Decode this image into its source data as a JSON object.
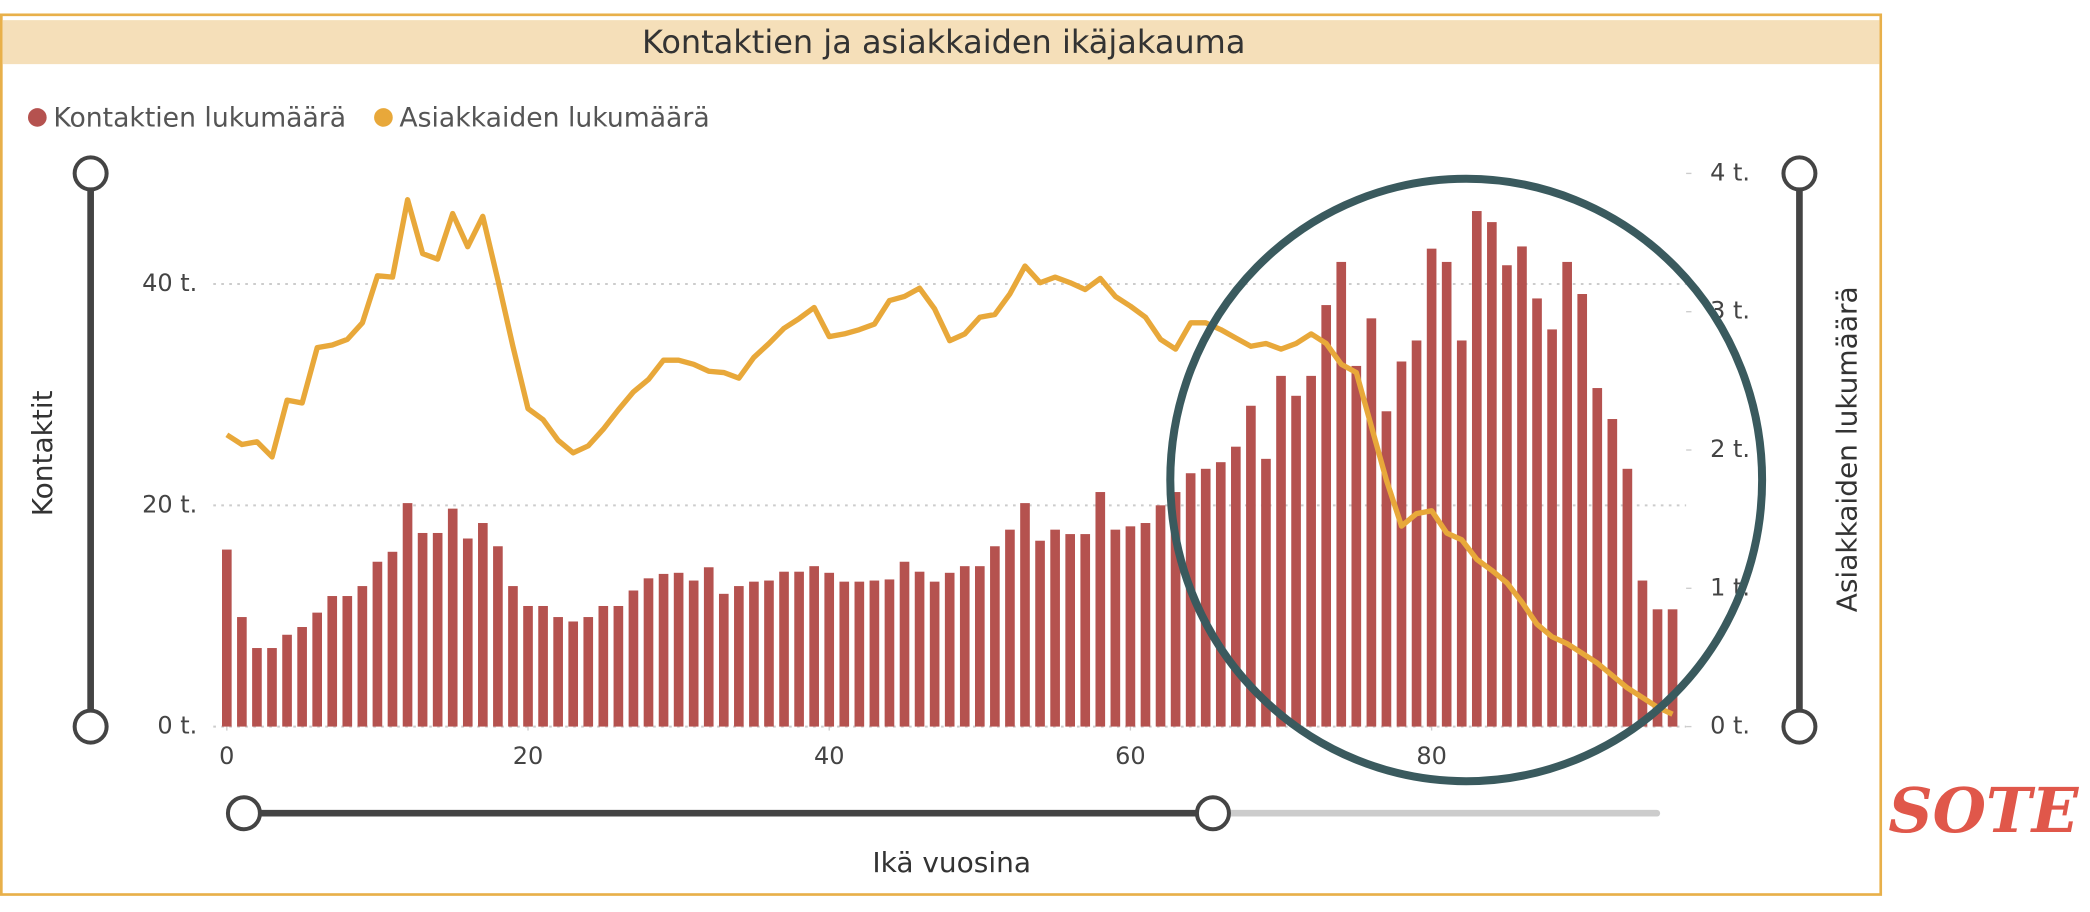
{
  "chart_data": {
    "type": "bar",
    "title": "Kontaktien ja asiakkaiden ikäjakauma",
    "x_label": "Ikä vuosina",
    "y_label": "Kontaktit",
    "y2_label": "Asiakkaiden lukumäärä",
    "x": [
      0,
      1,
      2,
      3,
      4,
      5,
      6,
      7,
      8,
      9,
      10,
      11,
      12,
      13,
      14,
      15,
      16,
      17,
      18,
      19,
      20,
      21,
      22,
      23,
      24,
      25,
      26,
      27,
      28,
      29,
      30,
      31,
      32,
      33,
      34,
      35,
      36,
      37,
      38,
      39,
      40,
      41,
      42,
      43,
      44,
      45,
      46,
      47,
      48,
      49,
      50,
      51,
      52,
      53,
      54,
      55,
      56,
      57,
      58,
      59,
      60,
      61,
      62,
      63,
      64,
      65,
      66,
      67,
      68,
      69,
      70,
      71,
      72,
      73,
      74,
      75,
      76,
      77,
      78,
      79,
      80,
      81,
      82,
      83,
      84,
      85,
      86,
      87,
      88,
      89,
      90,
      91,
      92,
      93,
      94,
      95,
      96
    ],
    "series": [
      {
        "name": "Kontaktien lukumäärä",
        "type": "bar",
        "color": "#b5524f",
        "values": [
          16000,
          9900,
          7100,
          7100,
          8300,
          9000,
          10300,
          11800,
          11800,
          12700,
          14900,
          15800,
          20200,
          17500,
          17500,
          19700,
          17000,
          18400,
          16300,
          12700,
          10900,
          10900,
          9900,
          9500,
          9900,
          10900,
          10900,
          12300,
          13400,
          13800,
          13900,
          13200,
          14400,
          12000,
          12700,
          13100,
          13200,
          14000,
          14000,
          14500,
          13900,
          13100,
          13100,
          13200,
          13300,
          14900,
          14000,
          13100,
          13900,
          14500,
          14500,
          16300,
          17800,
          20200,
          16800,
          17800,
          17400,
          17400,
          21200,
          17800,
          18100,
          18400,
          20000,
          21200,
          22900,
          23300,
          23900,
          25300,
          29000,
          24200,
          31700,
          29900,
          31700,
          38100,
          42000,
          32600,
          36900,
          28500,
          33000,
          34900,
          43200,
          42000,
          34900,
          46600,
          45600,
          41700,
          43400,
          38700,
          35900,
          42000,
          39100,
          30600,
          27800,
          23300,
          13200,
          10600,
          10600
        ]
      },
      {
        "name": "Asiakkaiden lukumäärä",
        "type": "line",
        "axis": "y2",
        "color": "#e8a83a",
        "values": [
          2110,
          2040,
          2060,
          1950,
          2360,
          2340,
          2740,
          2760,
          2800,
          2920,
          3260,
          3250,
          3810,
          3420,
          3380,
          3710,
          3470,
          3690,
          3230,
          2750,
          2300,
          2220,
          2070,
          1980,
          2030,
          2150,
          2290,
          2420,
          2510,
          2650,
          2650,
          2620,
          2570,
          2560,
          2520,
          2670,
          2770,
          2880,
          2950,
          3030,
          2820,
          2840,
          2870,
          2910,
          3080,
          3110,
          3170,
          3020,
          2790,
          2840,
          2960,
          2980,
          3130,
          3330,
          3210,
          3250,
          3210,
          3160,
          3240,
          3110,
          3040,
          2960,
          2800,
          2730,
          2920,
          2920,
          2870,
          2810,
          2750,
          2770,
          2730,
          2770,
          2840,
          2770,
          2620,
          2560,
          2170,
          1780,
          1450,
          1540,
          1560,
          1400,
          1350,
          1210,
          1130,
          1040,
          900,
          740,
          650,
          600,
          530,
          460,
          370,
          280,
          210,
          140,
          90
        ]
      }
    ],
    "xlim": [
      -0.9,
      96.9
    ],
    "xticks": [
      0,
      20,
      40,
      60,
      80
    ],
    "ylim": [
      0,
      50000
    ],
    "yticks": [
      {
        "value": 0,
        "label": "0 t."
      },
      {
        "value": 20000,
        "label": "20 t."
      },
      {
        "value": 40000,
        "label": "40 t."
      }
    ],
    "y2lim": [
      0,
      4000
    ],
    "y2ticks": [
      {
        "value": 0,
        "label": "0 t."
      },
      {
        "value": 1000,
        "label": "1 t."
      },
      {
        "value": 2000,
        "label": "2 t."
      },
      {
        "value": 3000,
        "label": "3 t."
      },
      {
        "value": 4000,
        "label": "4 t."
      }
    ],
    "grid": true,
    "legend": "top-left",
    "logo": "SOTE"
  }
}
